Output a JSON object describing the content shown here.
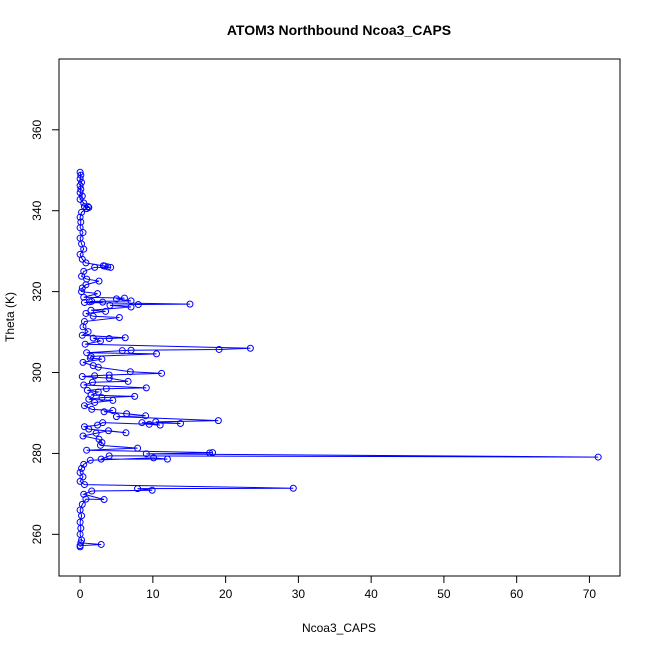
{
  "chart_data": {
    "type": "line",
    "title": "ATOM3 Northbound Ncoa3_CAPS",
    "xlabel": "Ncoa3_CAPS",
    "ylabel": "Theta (K)",
    "xlim": [
      -2.9,
      74.2
    ],
    "ylim": [
      249.7,
      377.5
    ],
    "x_ticks": [
      0,
      10,
      20,
      30,
      40,
      50,
      60,
      70
    ],
    "y_ticks": [
      260,
      280,
      300,
      320,
      340,
      360
    ],
    "color": "#0000ff",
    "markers": "open-circle",
    "grid": false,
    "series": [
      {
        "points": [
          [
            0,
            349.5
          ],
          [
            0.1,
            348.8
          ],
          [
            0,
            347.9
          ],
          [
            0.2,
            347.0
          ],
          [
            0,
            346.2
          ],
          [
            0.1,
            345.3
          ],
          [
            0,
            344.5
          ],
          [
            0.3,
            343.6
          ],
          [
            0,
            342.8
          ],
          [
            0.5,
            341.9
          ],
          [
            0.6,
            341.0
          ],
          [
            1.2,
            340.8
          ],
          [
            1.1,
            341.0
          ],
          [
            0.9,
            340.5
          ],
          [
            0.2,
            339.6
          ],
          [
            0,
            338.4
          ],
          [
            0.1,
            337.2
          ],
          [
            0,
            335.8
          ],
          [
            0.4,
            334.6
          ],
          [
            0,
            333.2
          ],
          [
            0.2,
            331.8
          ],
          [
            0.5,
            330.5
          ],
          [
            0,
            329.2
          ],
          [
            0.3,
            328.0
          ],
          [
            0.8,
            327.1
          ],
          [
            3.4,
            326.3
          ],
          [
            3.2,
            326.4
          ],
          [
            3.8,
            326.1
          ],
          [
            4.2,
            326.0
          ],
          [
            2.0,
            326.0
          ],
          [
            0.5,
            325.0
          ],
          [
            0.2,
            323.8
          ],
          [
            0.9,
            323.1
          ],
          [
            2.6,
            322.6
          ],
          [
            0.8,
            321.7
          ],
          [
            0.3,
            320.9
          ],
          [
            0.2,
            320.0
          ],
          [
            2.4,
            319.5
          ],
          [
            0.5,
            318.6
          ],
          [
            6.1,
            318.4
          ],
          [
            5.0,
            318.2
          ],
          [
            7.0,
            317.7
          ],
          [
            1.6,
            317.6
          ],
          [
            1.3,
            317.5
          ],
          [
            3.1,
            317.4
          ],
          [
            0.6,
            317.3
          ],
          [
            15.1,
            316.9
          ],
          [
            8.0,
            316.8
          ],
          [
            4.1,
            316.6
          ],
          [
            7.0,
            316.2
          ],
          [
            1.5,
            315.4
          ],
          [
            3.5,
            315.1
          ],
          [
            0.8,
            314.6
          ],
          [
            1.8,
            313.9
          ],
          [
            5.4,
            313.6
          ],
          [
            0.6,
            312.6
          ],
          [
            0.4,
            311.3
          ],
          [
            1.1,
            310.1
          ],
          [
            0.3,
            309.2
          ],
          [
            6.2,
            308.6
          ],
          [
            4.0,
            308.4
          ],
          [
            1.8,
            308.5
          ],
          [
            2.8,
            307.8
          ],
          [
            0.7,
            307.0
          ],
          [
            23.4,
            306.0
          ],
          [
            19.1,
            305.7
          ],
          [
            7.0,
            305.5
          ],
          [
            5.8,
            305.4
          ],
          [
            0.9,
            304.9
          ],
          [
            10.5,
            304.6
          ],
          [
            1.5,
            304.0
          ],
          [
            1.4,
            303.6
          ],
          [
            3.0,
            303.3
          ],
          [
            0.4,
            302.5
          ],
          [
            1.8,
            301.7
          ],
          [
            2.5,
            301.3
          ],
          [
            6.9,
            300.2
          ],
          [
            11.2,
            299.8
          ],
          [
            4.0,
            299.4
          ],
          [
            2.0,
            299.2
          ],
          [
            0.3,
            299.0
          ],
          [
            4.0,
            298.6
          ],
          [
            6.6,
            297.8
          ],
          [
            1.7,
            297.6
          ],
          [
            0.5,
            296.9
          ],
          [
            9.1,
            296.2
          ],
          [
            3.6,
            296.0
          ],
          [
            1.0,
            295.6
          ],
          [
            2.5,
            295.2
          ],
          [
            1.5,
            294.4
          ],
          [
            7.5,
            294.1
          ],
          [
            3.0,
            293.8
          ],
          [
            1.2,
            293.4
          ],
          [
            4.5,
            293.1
          ],
          [
            2.0,
            292.6
          ],
          [
            0.6,
            291.8
          ],
          [
            1.6,
            290.9
          ],
          [
            4.5,
            290.6
          ],
          [
            3.3,
            290.3
          ],
          [
            6.4,
            289.8
          ],
          [
            9.0,
            289.3
          ],
          [
            5.0,
            289.1
          ],
          [
            19.0,
            288.1
          ],
          [
            10.4,
            287.8
          ],
          [
            13.8,
            287.4
          ],
          [
            8.5,
            287.6
          ],
          [
            11.0,
            287.0
          ],
          [
            9.5,
            287.2
          ],
          [
            3.1,
            287.6
          ],
          [
            2.4,
            287.0
          ],
          [
            0.6,
            286.6
          ],
          [
            1.2,
            286.0
          ],
          [
            6.3,
            285.1
          ],
          [
            3.9,
            285.6
          ],
          [
            2.2,
            285.0
          ],
          [
            0.4,
            284.3
          ],
          [
            2.6,
            283.5
          ],
          [
            3.0,
            282.7
          ],
          [
            2.8,
            282.0
          ],
          [
            7.9,
            281.3
          ],
          [
            0.9,
            280.8
          ],
          [
            18.2,
            280.2
          ],
          [
            17.8,
            280.1
          ],
          [
            9.1,
            279.9
          ],
          [
            71.2,
            279.1
          ],
          [
            4.0,
            279.4
          ],
          [
            2.9,
            278.6
          ],
          [
            12.0,
            278.6
          ],
          [
            10.1,
            278.9
          ],
          [
            1.4,
            278.3
          ],
          [
            0.5,
            277.3
          ],
          [
            0.2,
            276.3
          ],
          [
            0,
            275.3
          ],
          [
            0.4,
            274.2
          ],
          [
            0,
            273.1
          ],
          [
            0.6,
            272.3
          ],
          [
            29.3,
            271.4
          ],
          [
            7.9,
            271.3
          ],
          [
            9.9,
            270.9
          ],
          [
            1.6,
            270.7
          ],
          [
            0.5,
            269.9
          ],
          [
            3.3,
            268.6
          ],
          [
            0.8,
            268.7
          ],
          [
            0.3,
            267.4
          ],
          [
            0,
            266.0
          ],
          [
            0.2,
            264.6
          ],
          [
            0,
            263.0
          ],
          [
            0.1,
            261.5
          ],
          [
            0,
            260.0
          ],
          [
            0.2,
            258.6
          ],
          [
            0.1,
            257.9
          ],
          [
            2.9,
            257.5
          ],
          [
            0,
            257.2
          ],
          [
            0,
            256.9
          ]
        ]
      }
    ]
  }
}
